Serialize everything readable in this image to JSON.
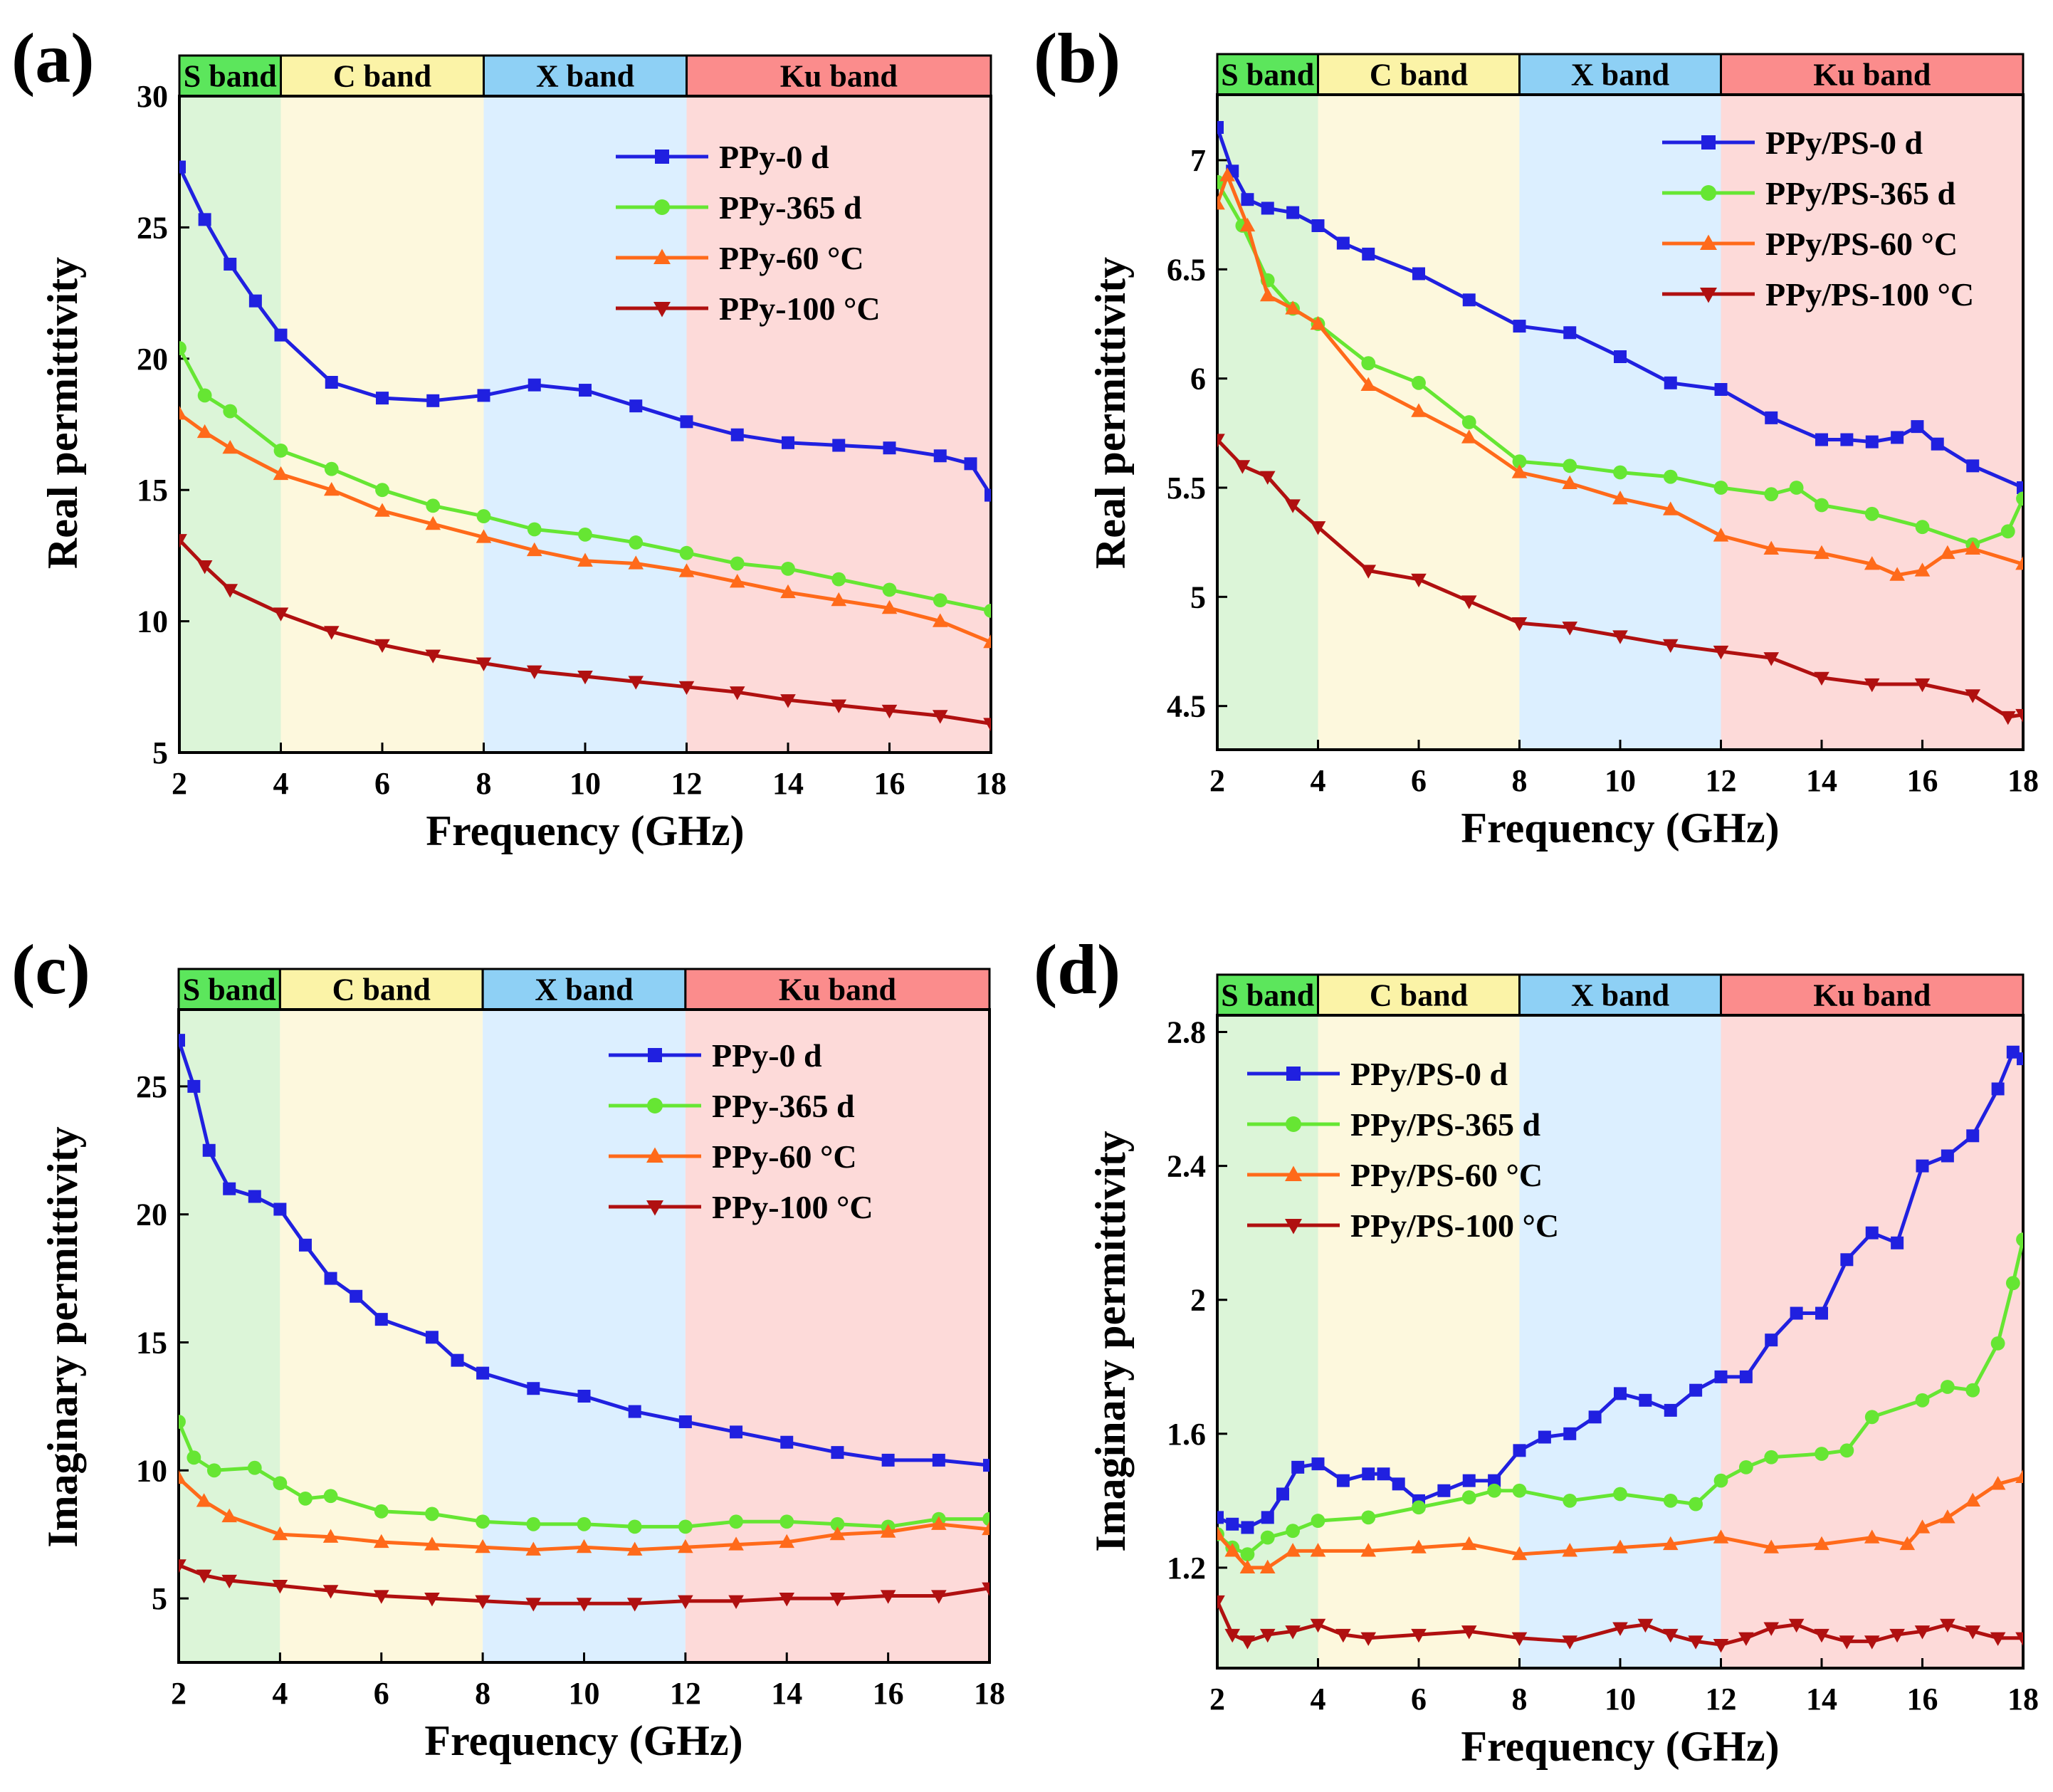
{
  "chart_data": [
    {
      "panel": "(a)",
      "type": "line",
      "xlabel": "Frequency (GHz)",
      "ylabel": "Real permittivity",
      "xlim": [
        2,
        18
      ],
      "ylim": [
        5,
        30
      ],
      "xticks": [
        2,
        4,
        6,
        8,
        10,
        12,
        14,
        16,
        18
      ],
      "yticks": [
        5,
        10,
        15,
        20,
        25,
        30
      ],
      "legend_position": "top-right",
      "bands": [
        {
          "label": "S band",
          "from": 2,
          "to": 4,
          "header_color": "#5ce65c",
          "fill_color": "#dcf5d8"
        },
        {
          "label": "C band",
          "from": 4,
          "to": 8,
          "header_color": "#fbf3a7",
          "fill_color": "#fdf8dd"
        },
        {
          "label": "X band",
          "from": 8,
          "to": 12,
          "header_color": "#8ed0f5",
          "fill_color": "#dcefff"
        },
        {
          "label": "Ku band",
          "from": 12,
          "to": 18,
          "header_color": "#fb8c8c",
          "fill_color": "#fddad9"
        }
      ],
      "series": [
        {
          "name": "PPy-0 d",
          "color": "#2020e0",
          "marker": "square",
          "x": [
            2,
            2.5,
            3,
            3.5,
            4,
            5,
            6,
            7,
            8,
            9,
            10,
            11,
            12,
            13,
            14,
            15,
            16,
            17,
            17.6,
            18
          ],
          "y": [
            27.3,
            25.3,
            23.6,
            22.2,
            20.9,
            19.1,
            18.5,
            18.4,
            18.6,
            19.0,
            18.8,
            18.2,
            17.6,
            17.1,
            16.8,
            16.7,
            16.6,
            16.3,
            16.0,
            14.8
          ]
        },
        {
          "name": "PPy-365 d",
          "color": "#66e633",
          "marker": "circle",
          "x": [
            2,
            2.5,
            3,
            4,
            5,
            6,
            7,
            8,
            9,
            10,
            11,
            12,
            13,
            14,
            15,
            16,
            17,
            18
          ],
          "y": [
            20.4,
            18.6,
            18.0,
            16.5,
            15.8,
            15.0,
            14.4,
            14.0,
            13.5,
            13.3,
            13.0,
            12.6,
            12.2,
            12.0,
            11.6,
            11.2,
            10.8,
            10.4
          ]
        },
        {
          "name": "PPy-60 °C",
          "color": "#ff6a1a",
          "marker": "triangle-up",
          "x": [
            2,
            2.5,
            3,
            4,
            5,
            6,
            7,
            8,
            9,
            10,
            11,
            12,
            13,
            14,
            15,
            16,
            17,
            18
          ],
          "y": [
            17.9,
            17.2,
            16.6,
            15.6,
            15.0,
            14.2,
            13.7,
            13.2,
            12.7,
            12.3,
            12.2,
            11.9,
            11.5,
            11.1,
            10.8,
            10.5,
            10.0,
            9.2
          ]
        },
        {
          "name": "PPy-100 °C",
          "color": "#b01010",
          "marker": "triangle-down",
          "x": [
            2,
            2.5,
            3,
            4,
            5,
            6,
            7,
            8,
            9,
            10,
            11,
            12,
            13,
            14,
            15,
            16,
            17,
            18
          ],
          "y": [
            13.1,
            12.1,
            11.2,
            10.3,
            9.6,
            9.1,
            8.7,
            8.4,
            8.1,
            7.9,
            7.7,
            7.5,
            7.3,
            7.0,
            6.8,
            6.6,
            6.4,
            6.1
          ]
        }
      ]
    },
    {
      "panel": "(b)",
      "type": "line",
      "xlabel": "Frequency (GHz)",
      "ylabel": "Real permittivity",
      "xlim": [
        2,
        18
      ],
      "ylim": [
        4.3,
        7.3
      ],
      "xticks": [
        2,
        4,
        6,
        8,
        10,
        12,
        14,
        16,
        18
      ],
      "yticks": [
        4.5,
        5.0,
        5.5,
        6.0,
        6.5,
        7.0
      ],
      "legend_position": "top-right",
      "bands": [
        {
          "label": "S band",
          "from": 2,
          "to": 4,
          "header_color": "#5ce65c",
          "fill_color": "#dcf5d8"
        },
        {
          "label": "C band",
          "from": 4,
          "to": 8,
          "header_color": "#fbf3a7",
          "fill_color": "#fdf8dd"
        },
        {
          "label": "X band",
          "from": 8,
          "to": 12,
          "header_color": "#8ed0f5",
          "fill_color": "#dcefff"
        },
        {
          "label": "Ku band",
          "from": 12,
          "to": 18,
          "header_color": "#fb8c8c",
          "fill_color": "#fddad9"
        }
      ],
      "series": [
        {
          "name": "PPy/PS-0 d",
          "color": "#2020e0",
          "marker": "square",
          "x": [
            2,
            2.3,
            2.6,
            3,
            3.5,
            4,
            4.5,
            5,
            6,
            7,
            8,
            9,
            10,
            11,
            12,
            13,
            14,
            14.5,
            15,
            15.5,
            15.9,
            16.3,
            17,
            18
          ],
          "y": [
            7.15,
            6.95,
            6.82,
            6.78,
            6.76,
            6.7,
            6.62,
            6.57,
            6.48,
            6.36,
            6.24,
            6.21,
            6.1,
            5.98,
            5.95,
            5.82,
            5.72,
            5.72,
            5.71,
            5.73,
            5.78,
            5.7,
            5.6,
            5.5
          ]
        },
        {
          "name": "PPy/PS-365 d",
          "color": "#66e633",
          "marker": "circle",
          "x": [
            2,
            2.5,
            3,
            3.5,
            4,
            5,
            6,
            7,
            8,
            9,
            10,
            11,
            12,
            13,
            13.5,
            14,
            15,
            16,
            17,
            17.7,
            18
          ],
          "y": [
            6.9,
            6.7,
            6.45,
            6.32,
            6.25,
            6.07,
            5.98,
            5.8,
            5.62,
            5.6,
            5.57,
            5.55,
            5.5,
            5.47,
            5.5,
            5.42,
            5.38,
            5.32,
            5.24,
            5.3,
            5.45
          ]
        },
        {
          "name": "PPy/PS-60 °C",
          "color": "#ff6a1a",
          "marker": "triangle-up",
          "x": [
            2,
            2.2,
            2.6,
            3,
            3.5,
            4,
            5,
            6,
            7,
            8,
            9,
            10,
            11,
            12,
            13,
            14,
            15,
            15.5,
            16,
            16.5,
            17,
            18
          ],
          "y": [
            6.8,
            6.93,
            6.7,
            6.38,
            6.32,
            6.25,
            5.97,
            5.85,
            5.73,
            5.57,
            5.52,
            5.45,
            5.4,
            5.28,
            5.22,
            5.2,
            5.15,
            5.1,
            5.12,
            5.2,
            5.22,
            5.15
          ]
        },
        {
          "name": "PPy/PS-100 °C",
          "color": "#b01010",
          "marker": "triangle-down",
          "x": [
            2,
            2.5,
            3,
            3.5,
            4,
            5,
            6,
            7,
            8,
            9,
            10,
            11,
            12,
            13,
            14,
            15,
            16,
            17,
            17.7,
            18
          ],
          "y": [
            5.72,
            5.6,
            5.55,
            5.42,
            5.32,
            5.12,
            5.08,
            4.98,
            4.88,
            4.86,
            4.82,
            4.78,
            4.75,
            4.72,
            4.63,
            4.6,
            4.6,
            4.55,
            4.45,
            4.46
          ]
        }
      ]
    },
    {
      "panel": "(c)",
      "type": "line",
      "xlabel": "Frequency (GHz)",
      "ylabel": "Imaginary permittivity",
      "xlim": [
        2,
        18
      ],
      "ylim": [
        2.5,
        28
      ],
      "xticks": [
        2,
        4,
        6,
        8,
        10,
        12,
        14,
        16,
        18
      ],
      "yticks": [
        5,
        10,
        15,
        20,
        25
      ],
      "legend_position": "top-right",
      "bands": [
        {
          "label": "S band",
          "from": 2,
          "to": 4,
          "header_color": "#5ce65c",
          "fill_color": "#dcf5d8"
        },
        {
          "label": "C band",
          "from": 4,
          "to": 8,
          "header_color": "#fbf3a7",
          "fill_color": "#fdf8dd"
        },
        {
          "label": "X band",
          "from": 8,
          "to": 12,
          "header_color": "#8ed0f5",
          "fill_color": "#dcefff"
        },
        {
          "label": "Ku band",
          "from": 12,
          "to": 18,
          "header_color": "#fb8c8c",
          "fill_color": "#fddad9"
        }
      ],
      "series": [
        {
          "name": "PPy-0 d",
          "color": "#2020e0",
          "marker": "square",
          "x": [
            2,
            2.3,
            2.6,
            3,
            3.5,
            4,
            4.5,
            5,
            5.5,
            6,
            7,
            7.5,
            8,
            9,
            10,
            11,
            12,
            13,
            14,
            15,
            16,
            17,
            18
          ],
          "y": [
            26.8,
            25.0,
            22.5,
            21.0,
            20.7,
            20.2,
            18.8,
            17.5,
            16.8,
            15.9,
            15.2,
            14.3,
            13.8,
            13.2,
            12.9,
            12.3,
            11.9,
            11.5,
            11.1,
            10.7,
            10.4,
            10.4,
            10.2
          ]
        },
        {
          "name": "PPy-365 d",
          "color": "#66e633",
          "marker": "circle",
          "x": [
            2,
            2.3,
            2.7,
            3.5,
            4,
            4.5,
            5,
            6,
            7,
            8,
            9,
            10,
            11,
            12,
            13,
            14,
            15,
            16,
            17,
            18
          ],
          "y": [
            11.9,
            10.5,
            10.0,
            10.1,
            9.5,
            8.9,
            9.0,
            8.4,
            8.3,
            8.0,
            7.9,
            7.9,
            7.8,
            7.8,
            8.0,
            8.0,
            7.9,
            7.8,
            8.1,
            8.1
          ]
        },
        {
          "name": "PPy-60 °C",
          "color": "#ff6a1a",
          "marker": "triangle-up",
          "x": [
            2,
            2.5,
            3,
            4,
            5,
            6,
            7,
            8,
            9,
            10,
            11,
            12,
            13,
            14,
            15,
            16,
            17,
            18
          ],
          "y": [
            9.7,
            8.8,
            8.2,
            7.5,
            7.4,
            7.2,
            7.1,
            7.0,
            6.9,
            7.0,
            6.9,
            7.0,
            7.1,
            7.2,
            7.5,
            7.6,
            7.9,
            7.7
          ]
        },
        {
          "name": "PPy-100 °C",
          "color": "#b01010",
          "marker": "triangle-down",
          "x": [
            2,
            2.5,
            3,
            4,
            5,
            6,
            7,
            8,
            9,
            10,
            11,
            12,
            13,
            14,
            15,
            16,
            17,
            18
          ],
          "y": [
            6.3,
            5.9,
            5.7,
            5.5,
            5.3,
            5.1,
            5.0,
            4.9,
            4.8,
            4.8,
            4.8,
            4.9,
            4.9,
            5.0,
            5.0,
            5.1,
            5.1,
            5.4
          ]
        }
      ]
    },
    {
      "panel": "(d)",
      "type": "line",
      "xlabel": "Frequency (GHz)",
      "ylabel": "Imaginary permittivity",
      "xlim": [
        2,
        18
      ],
      "ylim": [
        0.9,
        2.85
      ],
      "xticks": [
        2,
        4,
        6,
        8,
        10,
        12,
        14,
        16,
        18
      ],
      "yticks": [
        1.2,
        1.6,
        2.0,
        2.4,
        2.8
      ],
      "legend_position": "top-left",
      "bands": [
        {
          "label": "S band",
          "from": 2,
          "to": 4,
          "header_color": "#5ce65c",
          "fill_color": "#dcf5d8"
        },
        {
          "label": "C band",
          "from": 4,
          "to": 8,
          "header_color": "#fbf3a7",
          "fill_color": "#fdf8dd"
        },
        {
          "label": "X band",
          "from": 8,
          "to": 12,
          "header_color": "#8ed0f5",
          "fill_color": "#dcefff"
        },
        {
          "label": "Ku band",
          "from": 12,
          "to": 18,
          "header_color": "#fb8c8c",
          "fill_color": "#fddad9"
        }
      ],
      "series": [
        {
          "name": "PPy/PS-0 d",
          "color": "#2020e0",
          "marker": "square",
          "x": [
            2,
            2.3,
            2.6,
            3,
            3.3,
            3.6,
            4,
            4.5,
            5,
            5.3,
            5.6,
            6,
            6.5,
            7,
            7.5,
            8,
            8.5,
            9,
            9.5,
            10,
            10.5,
            11,
            11.5,
            12,
            12.5,
            13,
            13.5,
            14,
            14.5,
            15,
            15.5,
            16,
            16.5,
            17,
            17.5,
            17.8,
            18
          ],
          "y": [
            1.35,
            1.33,
            1.32,
            1.35,
            1.42,
            1.5,
            1.51,
            1.46,
            1.48,
            1.48,
            1.45,
            1.4,
            1.43,
            1.46,
            1.46,
            1.55,
            1.59,
            1.6,
            1.65,
            1.72,
            1.7,
            1.67,
            1.73,
            1.77,
            1.77,
            1.88,
            1.96,
            1.96,
            2.12,
            2.2,
            2.17,
            2.4,
            2.43,
            2.49,
            2.63,
            2.74,
            2.72
          ]
        },
        {
          "name": "PPy/PS-365 d",
          "color": "#66e633",
          "marker": "circle",
          "x": [
            2,
            2.3,
            2.6,
            3,
            3.5,
            4,
            5,
            6,
            7,
            7.5,
            8,
            9,
            10,
            11,
            11.5,
            12,
            12.5,
            13,
            14,
            14.5,
            15,
            16,
            16.5,
            17,
            17.5,
            17.8,
            18
          ],
          "y": [
            1.3,
            1.26,
            1.24,
            1.29,
            1.31,
            1.34,
            1.35,
            1.38,
            1.41,
            1.43,
            1.43,
            1.4,
            1.42,
            1.4,
            1.39,
            1.46,
            1.5,
            1.53,
            1.54,
            1.55,
            1.65,
            1.7,
            1.74,
            1.73,
            1.87,
            2.05,
            2.18
          ]
        },
        {
          "name": "PPy/PS-60 °C",
          "color": "#ff6a1a",
          "marker": "triangle-up",
          "x": [
            2,
            2.3,
            2.6,
            3,
            3.5,
            4,
            5,
            6,
            7,
            8,
            9,
            10,
            11,
            12,
            13,
            14,
            15,
            15.7,
            16,
            16.5,
            17,
            17.5,
            18
          ],
          "y": [
            1.3,
            1.25,
            1.2,
            1.2,
            1.25,
            1.25,
            1.25,
            1.26,
            1.27,
            1.24,
            1.25,
            1.26,
            1.27,
            1.29,
            1.26,
            1.27,
            1.29,
            1.27,
            1.32,
            1.35,
            1.4,
            1.45,
            1.47
          ]
        },
        {
          "name": "PPy/PS-100 °C",
          "color": "#b01010",
          "marker": "triangle-down",
          "x": [
            2,
            2.3,
            2.6,
            3,
            3.5,
            4,
            4.5,
            5,
            6,
            7,
            8,
            9,
            10,
            10.5,
            11,
            11.5,
            12,
            12.5,
            13,
            13.5,
            14,
            14.5,
            15,
            15.5,
            16,
            16.5,
            17,
            17.5,
            18
          ],
          "y": [
            1.1,
            1.0,
            0.98,
            1.0,
            1.01,
            1.03,
            1.0,
            0.99,
            1.0,
            1.01,
            0.99,
            0.98,
            1.02,
            1.03,
            1.0,
            0.98,
            0.97,
            0.99,
            1.02,
            1.03,
            1.0,
            0.98,
            0.98,
            1.0,
            1.01,
            1.03,
            1.01,
            0.99,
            0.99
          ]
        }
      ]
    }
  ]
}
